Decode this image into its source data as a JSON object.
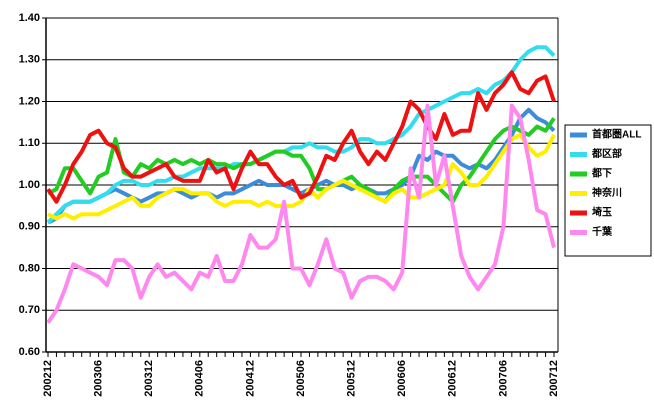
{
  "chart_data": {
    "type": "line",
    "categories": [
      "200212",
      null,
      null,
      null,
      null,
      null,
      "200306",
      null,
      null,
      null,
      null,
      null,
      "200312",
      null,
      null,
      null,
      null,
      null,
      "200406",
      null,
      null,
      null,
      null,
      null,
      "200412",
      null,
      null,
      null,
      null,
      null,
      "200506",
      null,
      null,
      null,
      null,
      null,
      "200512",
      null,
      null,
      null,
      null,
      null,
      "200606",
      null,
      null,
      null,
      null,
      null,
      "200612",
      null,
      null,
      null,
      null,
      null,
      "200706",
      null,
      null,
      null,
      null,
      null,
      "200712"
    ],
    "ylim": [
      0.6,
      1.4
    ],
    "yticks": [
      {
        "value": 0.6,
        "label": "0.60"
      },
      {
        "value": 0.7,
        "label": "0.70"
      },
      {
        "value": 0.8,
        "label": "0.80"
      },
      {
        "value": 0.9,
        "label": "0.90"
      },
      {
        "value": 1.0,
        "label": "1.00"
      },
      {
        "value": 1.1,
        "label": "1.10"
      },
      {
        "value": 1.2,
        "label": "1.20"
      },
      {
        "value": 1.3,
        "label": "1.30"
      },
      {
        "value": 1.4,
        "label": "1.40"
      }
    ],
    "grid": true,
    "series": [
      {
        "name": "首都圏ALL",
        "color": "#3c8cdc",
        "values": [
          0.91,
          0.92,
          0.95,
          0.96,
          0.96,
          0.96,
          0.97,
          0.98,
          0.99,
          0.98,
          0.97,
          0.96,
          0.97,
          0.98,
          0.98,
          0.99,
          0.98,
          0.97,
          0.98,
          0.98,
          0.97,
          0.98,
          0.98,
          0.99,
          1.0,
          1.01,
          1.0,
          1.0,
          1.0,
          0.99,
          0.98,
          0.99,
          1.0,
          1.01,
          1.0,
          1.0,
          0.99,
          1.0,
          0.99,
          0.98,
          0.98,
          0.99,
          1.0,
          1.02,
          1.07,
          1.06,
          1.08,
          1.07,
          1.07,
          1.05,
          1.04,
          1.05,
          1.04,
          1.06,
          1.09,
          1.12,
          1.16,
          1.18,
          1.16,
          1.15,
          1.13
        ]
      },
      {
        "name": "都区部",
        "color": "#33ddee",
        "values": [
          0.91,
          0.93,
          0.95,
          0.96,
          0.96,
          0.96,
          0.97,
          0.98,
          1.0,
          1.01,
          1.01,
          1.0,
          1.0,
          1.01,
          1.01,
          1.02,
          1.02,
          1.03,
          1.04,
          1.04,
          1.04,
          1.04,
          1.05,
          1.05,
          1.05,
          1.06,
          1.07,
          1.08,
          1.08,
          1.09,
          1.09,
          1.1,
          1.09,
          1.09,
          1.08,
          1.08,
          1.09,
          1.11,
          1.11,
          1.1,
          1.1,
          1.11,
          1.12,
          1.14,
          1.17,
          1.18,
          1.19,
          1.2,
          1.21,
          1.22,
          1.22,
          1.23,
          1.22,
          1.24,
          1.25,
          1.27,
          1.3,
          1.32,
          1.33,
          1.33,
          1.31
        ]
      },
      {
        "name": "都下",
        "color": "#22cc22",
        "values": [
          0.98,
          0.99,
          1.04,
          1.04,
          1.01,
          0.98,
          1.02,
          1.03,
          1.11,
          1.03,
          1.02,
          1.05,
          1.04,
          1.06,
          1.05,
          1.06,
          1.05,
          1.06,
          1.05,
          1.06,
          1.05,
          1.05,
          1.04,
          1.05,
          1.05,
          1.06,
          1.07,
          1.08,
          1.08,
          1.07,
          1.07,
          1.04,
          0.99,
          0.99,
          1.0,
          1.01,
          1.02,
          1.0,
          0.99,
          0.97,
          0.96,
          0.99,
          1.01,
          1.02,
          1.02,
          1.02,
          1.0,
          0.98,
          0.96,
          1.0,
          1.02,
          1.05,
          1.08,
          1.11,
          1.13,
          1.14,
          1.13,
          1.12,
          1.14,
          1.13,
          1.16
        ]
      },
      {
        "name": "神奈川",
        "color": "#ffee00",
        "values": [
          0.93,
          0.92,
          0.93,
          0.92,
          0.93,
          0.93,
          0.93,
          0.94,
          0.95,
          0.96,
          0.97,
          0.95,
          0.95,
          0.97,
          0.98,
          0.99,
          0.99,
          0.98,
          0.98,
          0.98,
          0.96,
          0.95,
          0.96,
          0.96,
          0.96,
          0.95,
          0.96,
          0.95,
          0.95,
          0.95,
          0.96,
          0.99,
          0.97,
          0.99,
          1.0,
          1.01,
          1.0,
          0.99,
          0.98,
          0.97,
          0.96,
          0.98,
          0.99,
          0.97,
          0.97,
          0.98,
          0.99,
          1.0,
          1.05,
          1.03,
          1.0,
          1.0,
          1.02,
          1.05,
          1.08,
          1.11,
          1.12,
          1.09,
          1.07,
          1.08,
          1.12
        ]
      },
      {
        "name": "埼玉",
        "color": "#ee1111",
        "values": [
          0.99,
          0.96,
          1.0,
          1.05,
          1.08,
          1.12,
          1.13,
          1.1,
          1.09,
          1.04,
          1.02,
          1.02,
          1.03,
          1.04,
          1.05,
          1.02,
          1.01,
          1.01,
          1.01,
          1.06,
          1.03,
          1.04,
          0.99,
          1.04,
          1.08,
          1.05,
          1.05,
          1.02,
          1.0,
          1.01,
          0.97,
          0.98,
          1.02,
          1.07,
          1.06,
          1.1,
          1.13,
          1.08,
          1.05,
          1.08,
          1.06,
          1.1,
          1.14,
          1.2,
          1.18,
          1.14,
          1.11,
          1.17,
          1.12,
          1.13,
          1.13,
          1.22,
          1.18,
          1.22,
          1.24,
          1.27,
          1.23,
          1.22,
          1.25,
          1.26,
          1.2
        ]
      },
      {
        "name": "千葉",
        "color": "#ff88ee",
        "values": [
          0.67,
          0.7,
          0.75,
          0.81,
          0.8,
          0.79,
          0.78,
          0.76,
          0.82,
          0.82,
          0.8,
          0.73,
          0.78,
          0.81,
          0.78,
          0.79,
          0.77,
          0.75,
          0.79,
          0.78,
          0.83,
          0.77,
          0.77,
          0.81,
          0.88,
          0.85,
          0.85,
          0.87,
          0.96,
          0.8,
          0.8,
          0.76,
          0.81,
          0.87,
          0.8,
          0.79,
          0.73,
          0.77,
          0.78,
          0.78,
          0.77,
          0.75,
          0.79,
          1.04,
          0.97,
          1.19,
          1.0,
          1.07,
          0.95,
          0.83,
          0.78,
          0.75,
          0.78,
          0.81,
          0.9,
          1.19,
          1.16,
          1.06,
          0.94,
          0.93,
          0.85
        ]
      }
    ]
  }
}
